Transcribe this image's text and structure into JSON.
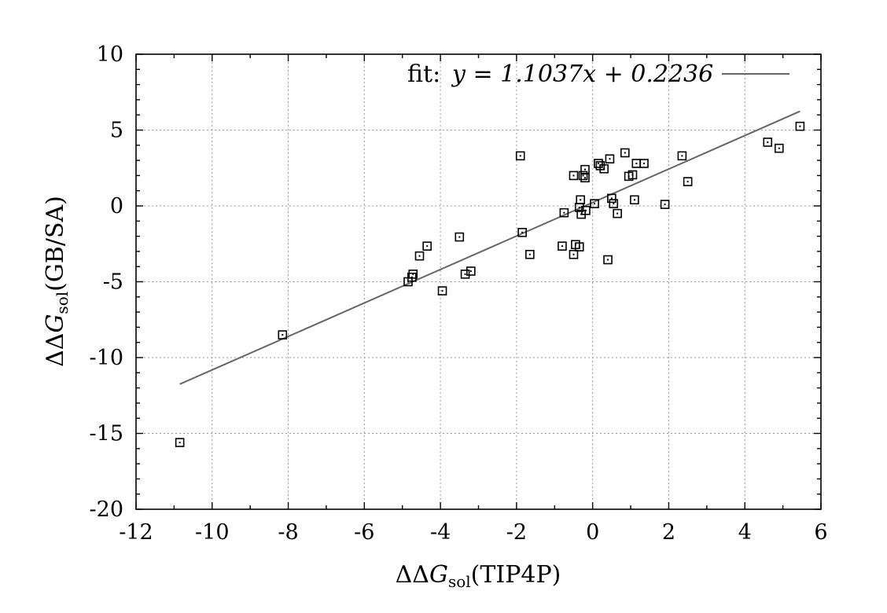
{
  "chart_data": {
    "type": "scatter",
    "xlabel_main": "ΔΔ",
    "xlabel_var": "G",
    "xlabel_sub": "sol",
    "xlabel_tail": "(TIP4P)",
    "ylabel_main": "ΔΔ",
    "ylabel_var": "G",
    "ylabel_sub": "sol",
    "ylabel_tail": "(GB/SA)",
    "xlim": [
      -12,
      6
    ],
    "ylim": [
      -20,
      10
    ],
    "xticks": [
      -12,
      -10,
      -8,
      -6,
      -4,
      -2,
      0,
      2,
      4,
      6
    ],
    "yticks": [
      -20,
      -15,
      -10,
      -5,
      0,
      5,
      10
    ],
    "grid": true,
    "legend_position": "top-right",
    "series": [
      {
        "kind": "points",
        "points": [
          [
            -10.85,
            -15.6
          ],
          [
            -8.15,
            -8.5
          ],
          [
            -4.85,
            -5.0
          ],
          [
            -4.75,
            -4.7
          ],
          [
            -4.72,
            -4.5
          ],
          [
            -4.55,
            -3.3
          ],
          [
            -4.35,
            -2.65
          ],
          [
            -3.95,
            -5.6
          ],
          [
            -3.5,
            -2.05
          ],
          [
            -3.35,
            -4.5
          ],
          [
            -3.2,
            -4.3
          ],
          [
            -1.9,
            3.3
          ],
          [
            -1.85,
            -1.75
          ],
          [
            -1.65,
            -3.2
          ],
          [
            -0.8,
            -2.65
          ],
          [
            -0.75,
            -0.45
          ],
          [
            -0.5,
            -3.2
          ],
          [
            -0.5,
            2.0
          ],
          [
            -0.45,
            -2.55
          ],
          [
            -0.35,
            -0.1
          ],
          [
            -0.35,
            -2.7
          ],
          [
            -0.32,
            0.4
          ],
          [
            -0.3,
            -0.55
          ],
          [
            -0.25,
            2.0
          ],
          [
            -0.2,
            1.85
          ],
          [
            -0.2,
            2.4
          ],
          [
            -0.18,
            -0.3
          ],
          [
            0.05,
            0.15
          ],
          [
            0.15,
            2.8
          ],
          [
            0.2,
            2.65
          ],
          [
            0.3,
            2.45
          ],
          [
            0.4,
            -3.55
          ],
          [
            0.45,
            3.1
          ],
          [
            0.5,
            0.5
          ],
          [
            0.55,
            0.15
          ],
          [
            0.65,
            -0.5
          ],
          [
            0.85,
            3.5
          ],
          [
            0.95,
            1.95
          ],
          [
            1.05,
            2.05
          ],
          [
            1.1,
            0.4
          ],
          [
            1.15,
            2.8
          ],
          [
            1.35,
            2.8
          ],
          [
            1.9,
            0.1
          ],
          [
            2.35,
            3.3
          ],
          [
            2.5,
            1.6
          ],
          [
            4.6,
            4.2
          ],
          [
            4.9,
            3.8
          ],
          [
            5.45,
            5.25
          ]
        ]
      },
      {
        "kind": "line",
        "name": "fit:",
        "equation": "y = 1.1037x + 0.2236",
        "slope": 1.1037,
        "intercept": 0.2236,
        "x_range": [
          -10.85,
          5.45
        ]
      }
    ]
  }
}
